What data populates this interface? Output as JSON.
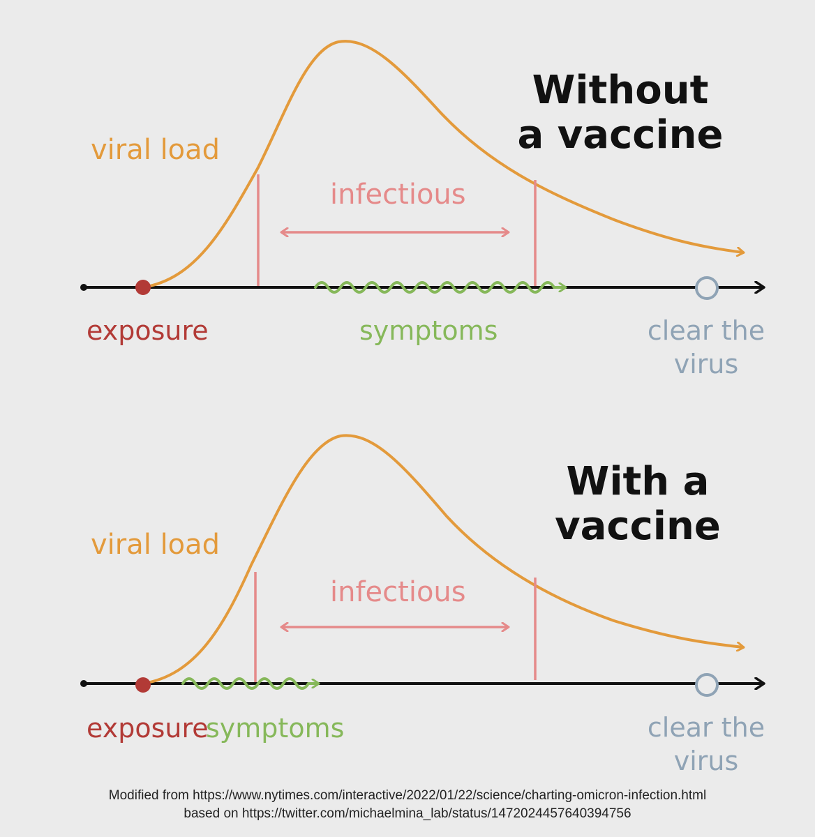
{
  "colors": {
    "background": "#ebebeb",
    "viral_load": "#e39a3b",
    "infectious": "#e58a8a",
    "symptoms": "#86b85a",
    "exposure": "#b23a36",
    "clear": "#8fa3b5",
    "timeline": "#111111"
  },
  "panels": [
    {
      "title_lines": [
        "Without",
        "a vaccine"
      ],
      "viral_load_label": "viral load",
      "infectious_label": "infectious",
      "exposure_label": "exposure",
      "symptoms_label": "symptoms",
      "clear_label_lines": [
        "clear the",
        "virus"
      ]
    },
    {
      "title_lines": [
        "With a",
        "vaccine"
      ],
      "viral_load_label": "viral load",
      "infectious_label": "infectious",
      "exposure_label": "exposure",
      "symptoms_label": "symptoms",
      "clear_label_lines": [
        "clear the",
        "virus"
      ]
    }
  ],
  "caption": {
    "line1": "Modified from https://www.nytimes.com/interactive/2022/01/22/science/charting-omicron-infection.html",
    "line2": "based on https://twitter.com/michaelmina_lab/status/1472024457640394756"
  }
}
